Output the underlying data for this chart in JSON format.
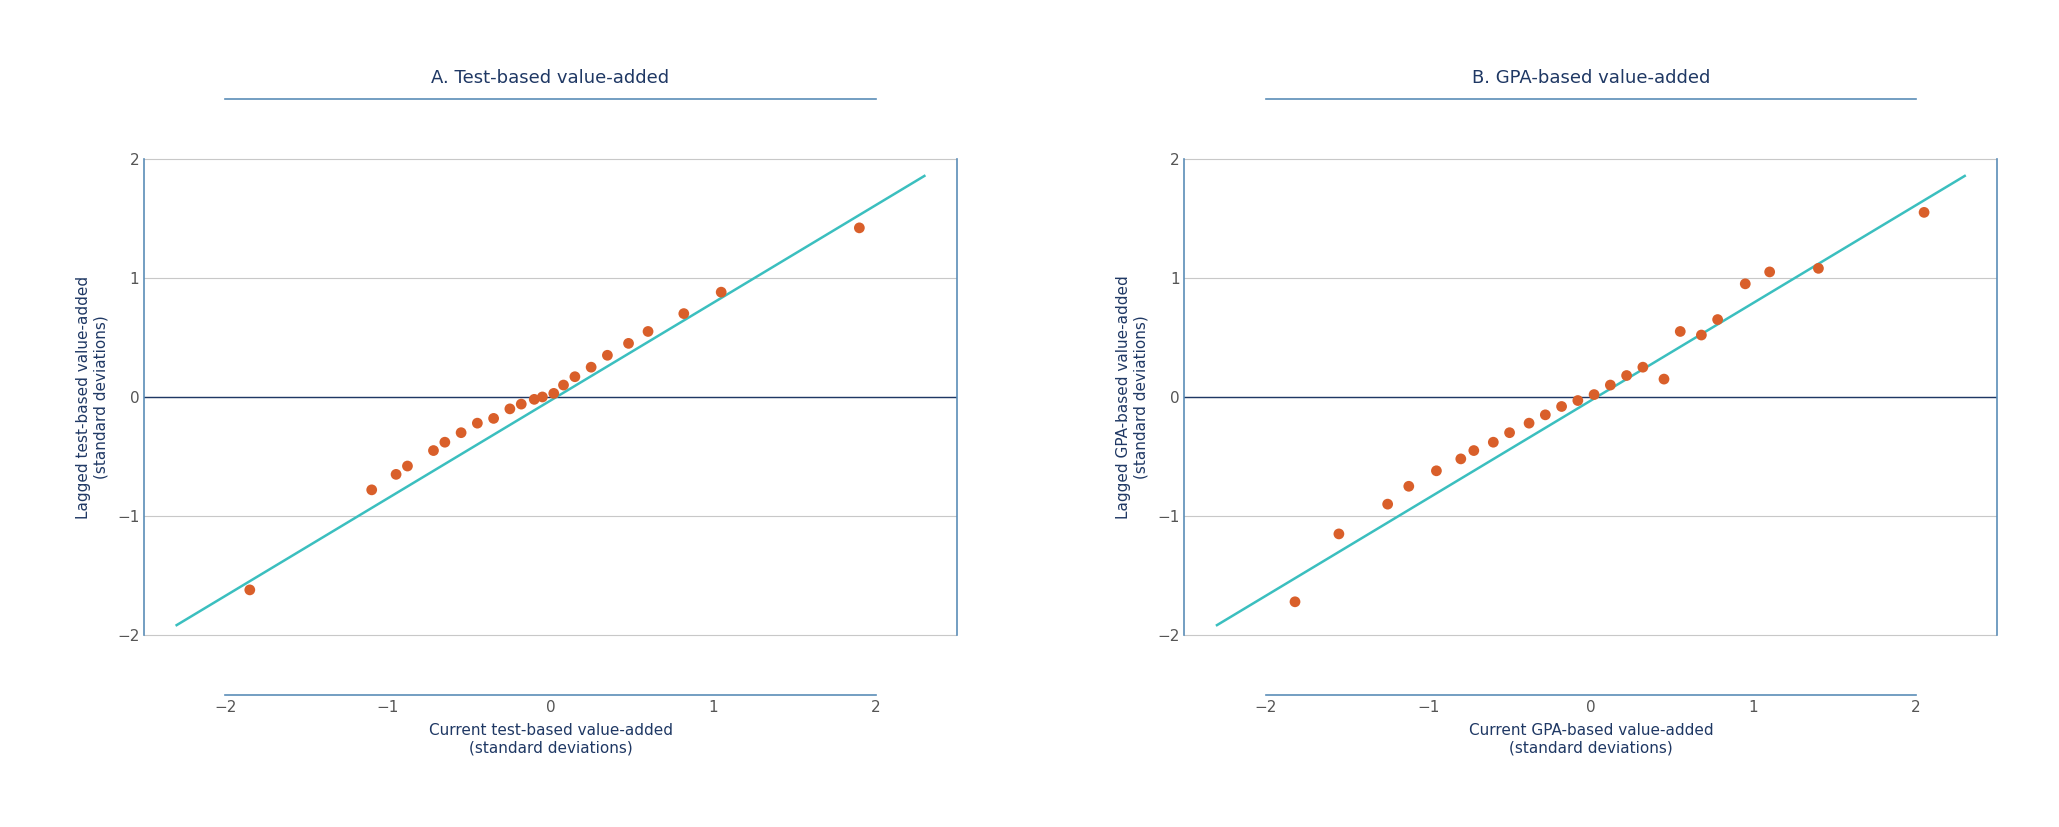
{
  "panel_A_title": "A. Test-based value-added",
  "panel_B_title": "B. GPA-based value-added",
  "panel_A_xlabel": "Current test-based value-added\n(standard deviations)",
  "panel_A_ylabel": "Lagged test-based value-added\n(standard deviations)",
  "panel_B_xlabel": "Current GPA-based value-added\n(standard deviations)",
  "panel_B_ylabel": "Lagged GPA-based value-added\n(standard deviations)",
  "panel_A_scatter_x": [
    -1.85,
    -1.1,
    -0.95,
    -0.88,
    -0.72,
    -0.65,
    -0.55,
    -0.45,
    -0.35,
    -0.25,
    -0.18,
    -0.1,
    -0.05,
    0.02,
    0.08,
    0.15,
    0.25,
    0.35,
    0.48,
    0.6,
    0.82,
    1.05,
    1.9
  ],
  "panel_A_scatter_y": [
    -1.62,
    -0.78,
    -0.65,
    -0.58,
    -0.45,
    -0.38,
    -0.3,
    -0.22,
    -0.18,
    -0.1,
    -0.06,
    -0.02,
    0.0,
    0.03,
    0.1,
    0.17,
    0.25,
    0.35,
    0.45,
    0.55,
    0.7,
    0.88,
    1.42
  ],
  "panel_B_scatter_x": [
    -1.82,
    -1.55,
    -1.25,
    -1.12,
    -0.95,
    -0.8,
    -0.72,
    -0.6,
    -0.5,
    -0.38,
    -0.28,
    -0.18,
    -0.08,
    0.02,
    0.12,
    0.22,
    0.32,
    0.45,
    0.55,
    0.68,
    0.78,
    0.95,
    1.1,
    1.4,
    2.05
  ],
  "panel_B_scatter_y": [
    -1.72,
    -1.15,
    -0.9,
    -0.75,
    -0.62,
    -0.52,
    -0.45,
    -0.38,
    -0.3,
    -0.22,
    -0.15,
    -0.08,
    -0.03,
    0.02,
    0.1,
    0.18,
    0.25,
    0.15,
    0.55,
    0.52,
    0.65,
    0.95,
    1.05,
    1.08,
    1.55
  ],
  "scatter_color": "#D95F2A",
  "line_color": "#3BBFBF",
  "title_color": "#1F3864",
  "axis_label_color": "#1F3864",
  "tick_label_color": "#555555",
  "border_color": "#5B8DB8",
  "grid_color": "#C8C8C8",
  "hline_color": "#1F3864",
  "background_color": "#FFFFFF",
  "xlim": [
    -2.5,
    2.5
  ],
  "ylim": [
    -2.5,
    2.5
  ],
  "xticks": [
    -2,
    -1,
    0,
    1,
    2
  ],
  "yticks": [
    -2,
    -1,
    0,
    1,
    2
  ],
  "title_fontsize": 13,
  "axis_label_fontsize": 11,
  "tick_fontsize": 11
}
